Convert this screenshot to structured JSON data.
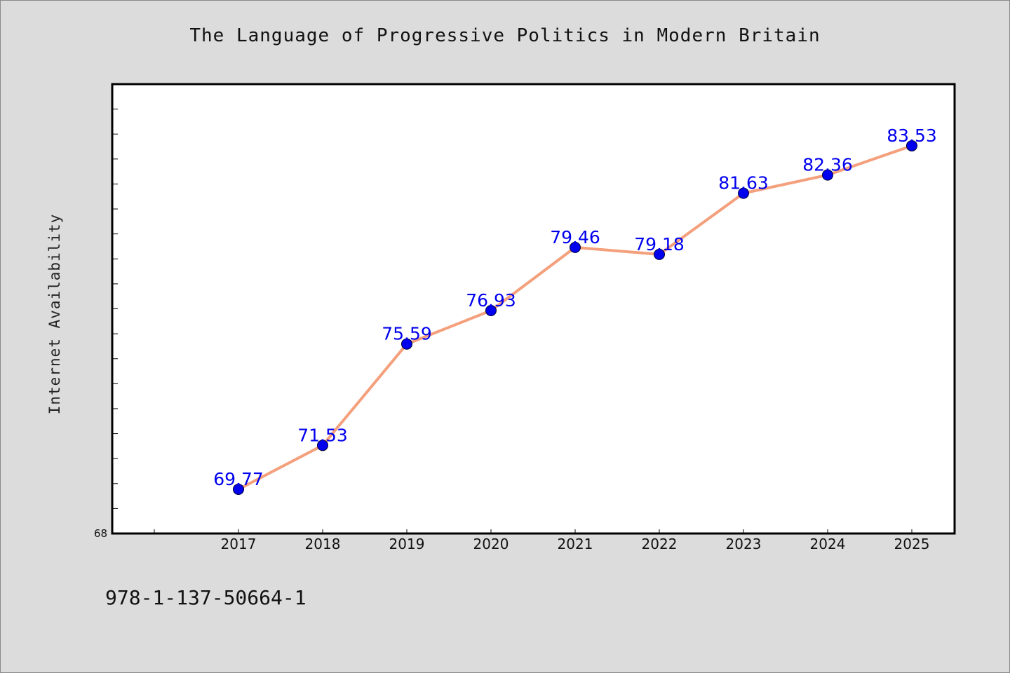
{
  "chart_data": {
    "type": "line",
    "title": "The Language of Progressive Politics in Modern Britain",
    "xlabel": "",
    "ylabel": "Internet Availability",
    "categories": [
      "2017",
      "2018",
      "2019",
      "2020",
      "2021",
      "2022",
      "2023",
      "2024",
      "2025"
    ],
    "series": [
      {
        "values": [
          69.77,
          71.53,
          75.59,
          76.93,
          79.46,
          79.18,
          81.63,
          82.36,
          83.53
        ],
        "labels": [
          "69.77",
          "71.53",
          "75.59",
          "76.93",
          "79.46",
          "79.18",
          "81.63",
          "82.36",
          "83.53"
        ]
      }
    ],
    "ylim": [
      68,
      86
    ],
    "ytick_label": "68",
    "grid": false,
    "line_color": "#f4a07c",
    "marker_color": "#0000ee",
    "label_color": "#0000ee"
  },
  "footer": {
    "isbn": "978-1-137-50664-1"
  }
}
